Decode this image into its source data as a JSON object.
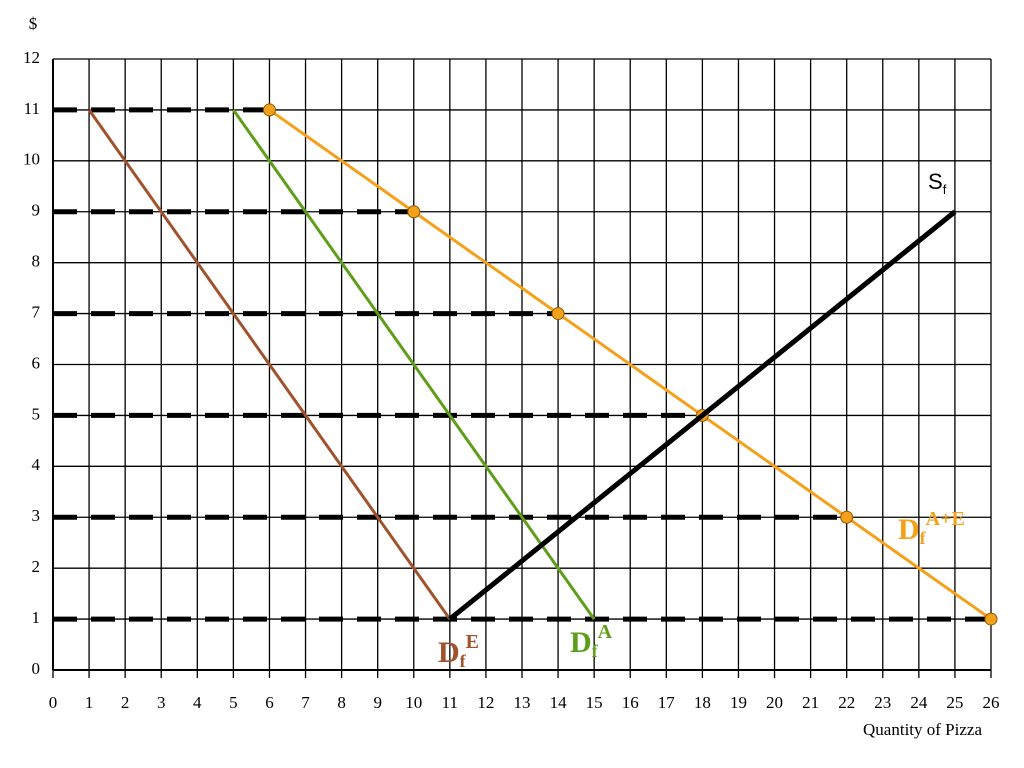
{
  "chart_data": {
    "type": "line",
    "y_label": "$",
    "x_label": "Quantity of Pizza",
    "xlim": [
      0,
      26
    ],
    "ylim": [
      0,
      12
    ],
    "xticks": [
      0,
      1,
      2,
      3,
      4,
      5,
      6,
      7,
      8,
      9,
      10,
      11,
      12,
      13,
      14,
      15,
      16,
      17,
      18,
      19,
      20,
      21,
      22,
      23,
      24,
      25,
      26
    ],
    "yticks": [
      0,
      1,
      2,
      3,
      4,
      5,
      6,
      7,
      8,
      9,
      10,
      11,
      12
    ],
    "grid": true,
    "dashed_lines": [
      {
        "y": 11,
        "x_end": 6
      },
      {
        "y": 9,
        "x_end": 10
      },
      {
        "y": 7,
        "x_end": 14
      },
      {
        "y": 5,
        "x_end": 18
      },
      {
        "y": 3,
        "x_end": 22
      },
      {
        "y": 1,
        "x_end": 26
      }
    ],
    "series": [
      {
        "name": "D",
        "subscript": "f",
        "superscript": "E",
        "color": "#a0522d",
        "x": [
          1,
          11
        ],
        "values": [
          11,
          1
        ],
        "markers": false
      },
      {
        "name": "D",
        "subscript": "f",
        "superscript": "A",
        "color": "#5f9e1a",
        "x": [
          5,
          15
        ],
        "values": [
          11,
          1
        ],
        "markers": false
      },
      {
        "name": "D",
        "subscript": "f",
        "superscript": "A+E",
        "color": "#f5a01a",
        "x": [
          6,
          10,
          14,
          18,
          22,
          26
        ],
        "values": [
          11,
          9,
          7,
          5,
          3,
          1
        ],
        "markers": true
      },
      {
        "name": "S",
        "subscript": "f",
        "color": "#000000",
        "x": [
          11,
          25
        ],
        "values": [
          1,
          9
        ],
        "markers": false
      }
    ]
  }
}
